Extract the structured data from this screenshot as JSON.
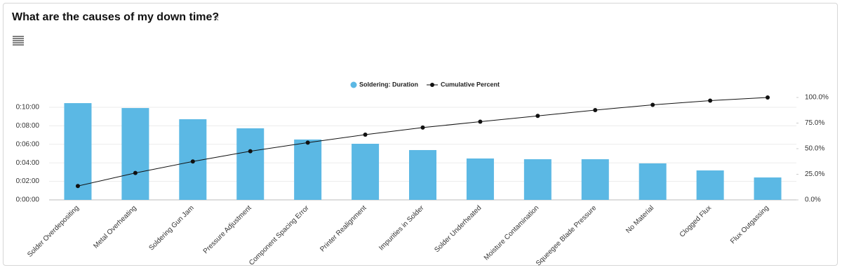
{
  "chart_data": {
    "type": "bar",
    "title": "What are the causes of my down time?",
    "categories": [
      "Solder Overdepositing",
      "Metal Overheating",
      "Soldering Gun Jam",
      "Pressure Adjustment",
      "Component Spacing Error",
      "Printer Realignment",
      "Impurities in Solder",
      "Solder Underheated",
      "Moisture Contamination",
      "Squeegee Blade Pressure",
      "No Material",
      "Clogged Flux",
      "Flux Outgassing"
    ],
    "series": [
      {
        "name": "Soldering: Duration",
        "type": "bar",
        "color": "#5bb8e4",
        "values": [
          10.45,
          9.92,
          8.71,
          7.73,
          6.52,
          6.06,
          5.38,
          4.47,
          4.39,
          4.39,
          3.94,
          3.18,
          2.42
        ]
      },
      {
        "name": "Cumulative Percent",
        "type": "line",
        "axis": "y2",
        "color": "#111111",
        "values": [
          13.5,
          26.3,
          37.5,
          47.5,
          55.9,
          63.7,
          70.6,
          76.4,
          82.0,
          87.7,
          92.8,
          96.9,
          100
        ]
      }
    ],
    "ylim": [
      0,
      11.06
    ],
    "yticks": [
      {
        "value": 0,
        "label": "0:00:00"
      },
      {
        "value": 2,
        "label": "0:02:00"
      },
      {
        "value": 4,
        "label": "0:04:00"
      },
      {
        "value": 6,
        "label": "0:06:00"
      },
      {
        "value": 8,
        "label": "0:08:00"
      },
      {
        "value": 10,
        "label": "0:10:00"
      }
    ],
    "y2lim": [
      0,
      100
    ],
    "y2ticks": [
      {
        "value": 0,
        "label": "0.0%"
      },
      {
        "value": 25,
        "label": "25.0%"
      },
      {
        "value": 50,
        "label": "50.0%"
      },
      {
        "value": 75,
        "label": "75.0%"
      },
      {
        "value": 100,
        "label": "100.0%"
      }
    ],
    "grid": true,
    "legend": "top"
  }
}
